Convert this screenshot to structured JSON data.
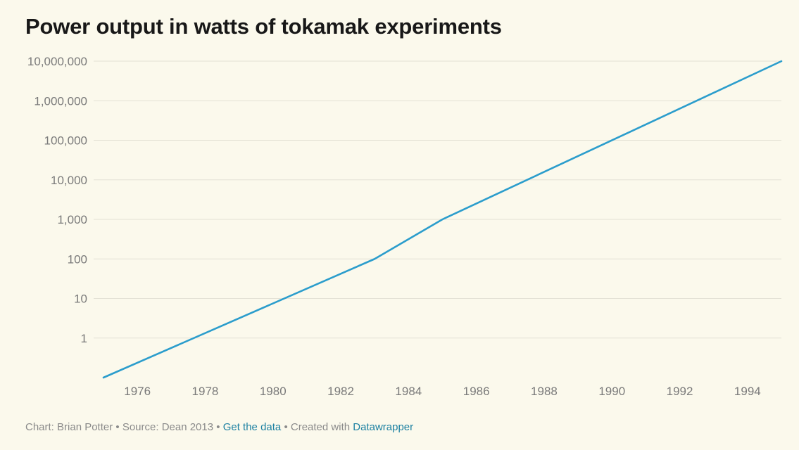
{
  "title": "Power output in watts of tokamak experiments",
  "footer": {
    "credit": "Chart: Brian Potter",
    "separator": "•",
    "source": "Source: Dean 2013",
    "get_data": "Get the data",
    "created_with": "Created with",
    "tool": "Datawrapper"
  },
  "colors": {
    "line": "#2b9dcc",
    "background": "#fbf9ec",
    "link": "#1d81a2"
  },
  "chart_data": {
    "type": "line",
    "scale_y": "log",
    "grid": "horizontal",
    "xlim": [
      1975,
      1995
    ],
    "ylim": [
      0.1,
      10000000
    ],
    "x_ticks": [
      "1976",
      "1978",
      "1980",
      "1982",
      "1984",
      "1986",
      "1988",
      "1990",
      "1992",
      "1994"
    ],
    "y_ticks": [
      "1",
      "10",
      "100",
      "1,000",
      "10,000",
      "100,000",
      "1,000,000",
      "10,000,000"
    ],
    "series": [
      {
        "x": [
          1975,
          1983,
          1985,
          1995
        ],
        "y": [
          0.1,
          100,
          1000,
          10000000
        ]
      }
    ]
  }
}
